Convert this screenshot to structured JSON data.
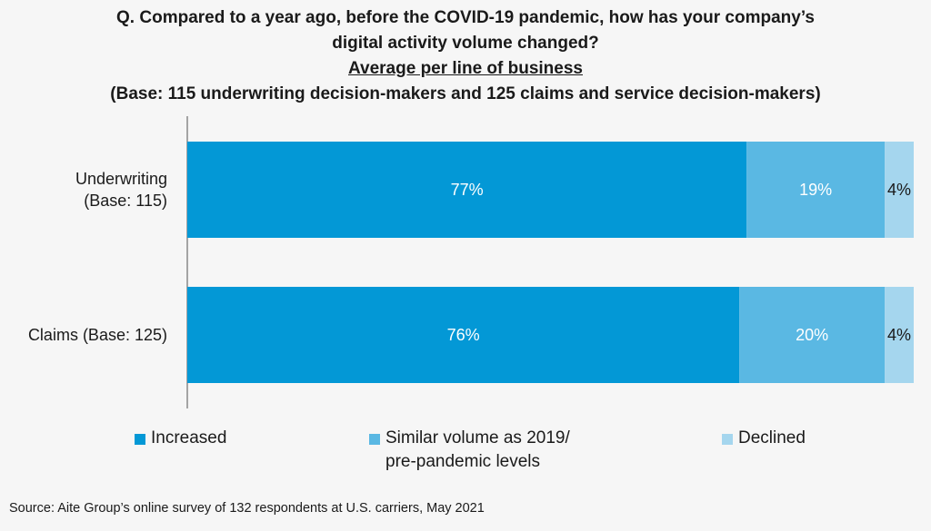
{
  "title": {
    "line1": "Q. Compared to a year ago, before the COVID-19 pandemic, how has your company’s",
    "line2": "digital activity volume changed?",
    "line3": "Average per line of business",
    "line4": "(Base: 115 underwriting decision-makers and 125 claims and service decision-makers)"
  },
  "colors": {
    "increased": "#0398d6",
    "similar": "#5ab8e3",
    "declined": "#a5d6ee"
  },
  "chart_data": {
    "type": "bar",
    "orientation": "horizontal",
    "stacked": true,
    "categories": [
      [
        "Underwriting",
        "(Base: 115)"
      ],
      [
        "Claims (Base: 125)"
      ]
    ],
    "series": [
      {
        "name": "Increased",
        "values": [
          77,
          76
        ]
      },
      {
        "name": "Similar volume as 2019/ pre-pandemic levels",
        "values": [
          19,
          20
        ]
      },
      {
        "name": "Declined",
        "values": [
          4,
          4
        ]
      }
    ],
    "value_labels": [
      [
        "77%",
        "19%",
        "4%"
      ],
      [
        "76%",
        "20%",
        "4%"
      ]
    ],
    "xlim": [
      0,
      100
    ],
    "unit": "%",
    "legend_position": "bottom"
  },
  "legend": {
    "increased": "Increased",
    "similar_line1": "Similar volume as 2019/",
    "similar_line2": "pre-pandemic levels",
    "declined": "Declined"
  },
  "source": "Source: Aite Group’s online survey of 132 respondents at U.S. carriers, May 2021"
}
